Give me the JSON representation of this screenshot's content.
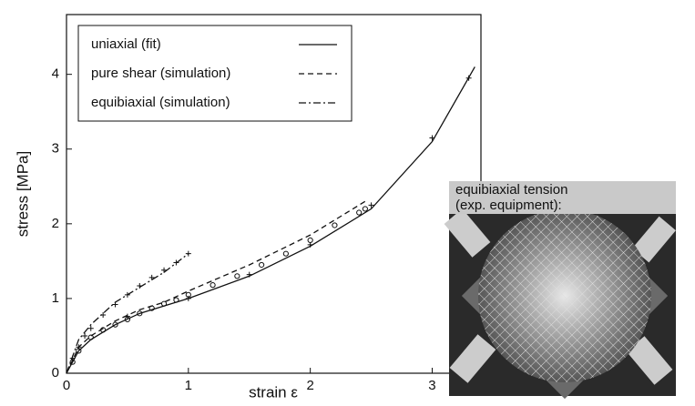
{
  "chart_data": {
    "type": "line",
    "x_label": "strain ε",
    "y_label": "stress  [MPa]",
    "xlim": [
      0,
      3.4
    ],
    "ylim": [
      0,
      4.8
    ],
    "xticks": [
      0,
      1,
      2,
      3
    ],
    "yticks": [
      0,
      1,
      2,
      3,
      4
    ],
    "annotation": [
      "equibiaxial tension",
      "(exp. equipment):"
    ],
    "series": [
      {
        "name": "uniaxial (fit)",
        "color": "#111111",
        "style": "solid",
        "x": [
          0,
          0.1,
          0.2,
          0.4,
          0.6,
          0.8,
          1,
          1.5,
          2,
          2.5,
          3,
          3.35
        ],
        "values": [
          0,
          0.3,
          0.45,
          0.65,
          0.8,
          0.9,
          1.0,
          1.3,
          1.7,
          2.2,
          3.1,
          4.1
        ]
      },
      {
        "name": "pure shear (simulation)",
        "color": "#111111",
        "style": "dashed",
        "x": [
          0,
          0.1,
          0.2,
          0.4,
          0.6,
          0.8,
          1,
          1.5,
          2,
          2.45
        ],
        "values": [
          0,
          0.35,
          0.5,
          0.7,
          0.85,
          0.95,
          1.1,
          1.45,
          1.85,
          2.3
        ]
      },
      {
        "name": "equibiaxial (simulation)",
        "color": "#111111",
        "style": "dashdot",
        "x": [
          0,
          0.1,
          0.2,
          0.4,
          0.6,
          0.8,
          1
        ],
        "values": [
          0,
          0.45,
          0.65,
          0.95,
          1.15,
          1.35,
          1.6
        ]
      },
      {
        "color": "#111111",
        "marker": "circle",
        "x": [
          0.05,
          0.1,
          0.2,
          0.3,
          0.4,
          0.5,
          0.6,
          0.7,
          0.8,
          0.9,
          1,
          1.2,
          1.4,
          1.6,
          1.8,
          2,
          2.2,
          2.4,
          2.45
        ],
        "values": [
          0.15,
          0.3,
          0.48,
          0.58,
          0.65,
          0.72,
          0.8,
          0.87,
          0.93,
          0.98,
          1.05,
          1.18,
          1.3,
          1.45,
          1.6,
          1.78,
          1.98,
          2.15,
          2.2
        ]
      },
      {
        "color": "#111111",
        "marker": "cross",
        "x": [
          0.05,
          0.1,
          0.15,
          0.2,
          0.3,
          0.4,
          0.5,
          0.6,
          0.7,
          0.8,
          0.9,
          1
        ],
        "values": [
          0.2,
          0.35,
          0.5,
          0.6,
          0.78,
          0.92,
          1.05,
          1.17,
          1.28,
          1.38,
          1.48,
          1.6
        ]
      },
      {
        "color": "#111111",
        "marker": "cross",
        "x": [
          0.5,
          1,
          1.5,
          2,
          2.5,
          3,
          3.3
        ],
        "values": [
          0.76,
          1.0,
          1.32,
          1.72,
          2.25,
          3.15,
          3.95
        ]
      }
    ]
  }
}
